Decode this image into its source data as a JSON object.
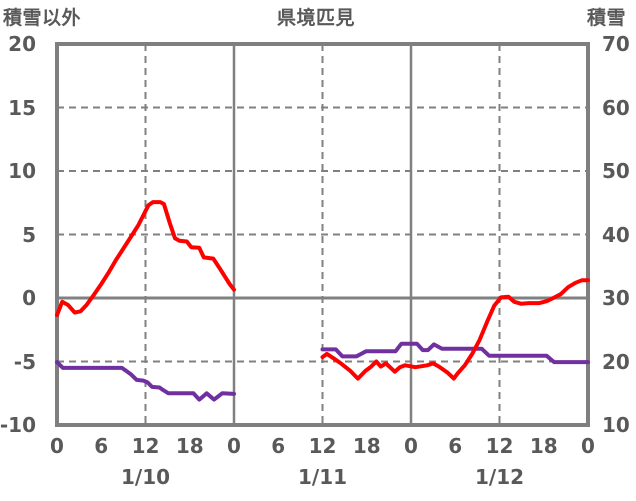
{
  "header": {
    "left_axis_title": "積雪以外",
    "title": "県境匹見",
    "right_axis_title": "積雪"
  },
  "colors": {
    "text": "#595959",
    "grid": "#808080",
    "border": "#7f7f7f",
    "background": "#ffffff",
    "red_series": "#ff0000",
    "purple_series": "#7030a0"
  },
  "chart_data": {
    "type": "line",
    "title": "県境匹見",
    "grid_on": true,
    "legend": "none",
    "left_axis": {
      "title": "積雪以外",
      "min": -10,
      "max": 20,
      "ticks": [
        {
          "label": "20",
          "value": 20
        },
        {
          "label": "15",
          "value": 15
        },
        {
          "label": "10",
          "value": 10
        },
        {
          "label": "5",
          "value": 5
        },
        {
          "label": "0",
          "value": 0
        },
        {
          "label": "-5",
          "value": -5
        },
        {
          "label": "-10",
          "value": -10
        }
      ]
    },
    "right_axis": {
      "title": "積雪",
      "min": 10,
      "max": 70,
      "ticks": [
        {
          "label": "70",
          "value": 70
        },
        {
          "label": "60",
          "value": 60
        },
        {
          "label": "50",
          "value": 50
        },
        {
          "label": "40",
          "value": 40
        },
        {
          "label": "30",
          "value": 30
        },
        {
          "label": "20",
          "value": 20
        },
        {
          "label": "10",
          "value": 10
        }
      ]
    },
    "x_axis": {
      "hours_total": 72,
      "hour_ticks": [
        {
          "label": "0",
          "hour": 0
        },
        {
          "label": "6",
          "hour": 6
        },
        {
          "label": "12",
          "hour": 12
        },
        {
          "label": "18",
          "hour": 18
        },
        {
          "label": "0",
          "hour": 24
        },
        {
          "label": "6",
          "hour": 30
        },
        {
          "label": "12",
          "hour": 36
        },
        {
          "label": "18",
          "hour": 42
        },
        {
          "label": "0",
          "hour": 48
        },
        {
          "label": "6",
          "hour": 54
        },
        {
          "label": "12",
          "hour": 60
        },
        {
          "label": "18",
          "hour": 66
        },
        {
          "label": "0",
          "hour": 72
        }
      ],
      "date_ticks": [
        {
          "label": "1/10",
          "hour": 12
        },
        {
          "label": "1/11",
          "hour": 36
        },
        {
          "label": "1/12",
          "hour": 60
        }
      ]
    },
    "grid": {
      "h_dashed_left_values": [
        15,
        10,
        5,
        -5
      ],
      "h_solid_left_values": [
        0
      ],
      "v_dashed_hours": [
        12,
        36,
        60
      ],
      "v_solid_hours": [
        24,
        48
      ]
    },
    "series": [
      {
        "name": "積雪以外 (red line, left axis)",
        "axis": "left",
        "color": "#ff0000",
        "segments": [
          [
            [
              0,
              -1.35
            ],
            [
              0.7,
              -0.3
            ],
            [
              1.5,
              -0.55
            ],
            [
              2.4,
              -1.15
            ],
            [
              3.2,
              -1.05
            ],
            [
              4,
              -0.55
            ],
            [
              5,
              0.25
            ],
            [
              6,
              1.1
            ],
            [
              7,
              2.0
            ],
            [
              8,
              3.0
            ],
            [
              9,
              3.9
            ],
            [
              10,
              4.8
            ],
            [
              11,
              5.7
            ],
            [
              11.7,
              6.5
            ],
            [
              12.4,
              7.3
            ],
            [
              13,
              7.55
            ],
            [
              14,
              7.55
            ],
            [
              14.5,
              7.4
            ],
            [
              15.3,
              5.9
            ],
            [
              16,
              4.7
            ],
            [
              16.6,
              4.5
            ],
            [
              17.6,
              4.45
            ],
            [
              18.2,
              4.0
            ],
            [
              19.3,
              3.95
            ],
            [
              19.9,
              3.2
            ],
            [
              21.2,
              3.1
            ],
            [
              22.1,
              2.3
            ],
            [
              23.4,
              1.1
            ],
            [
              24,
              0.65
            ]
          ],
          [
            [
              36,
              -4.65
            ],
            [
              36.6,
              -4.4
            ],
            [
              37.5,
              -4.75
            ],
            [
              38.5,
              -5.15
            ],
            [
              39.7,
              -5.7
            ],
            [
              40.8,
              -6.35
            ],
            [
              41.8,
              -5.75
            ],
            [
              42.6,
              -5.4
            ],
            [
              43.3,
              -5.0
            ],
            [
              43.9,
              -5.4
            ],
            [
              44.6,
              -5.15
            ],
            [
              45.8,
              -5.8
            ],
            [
              46.5,
              -5.45
            ],
            [
              47.2,
              -5.3
            ],
            [
              48.6,
              -5.45
            ],
            [
              50.2,
              -5.3
            ],
            [
              51,
              -5.15
            ],
            [
              51.8,
              -5.4
            ],
            [
              53,
              -5.9
            ],
            [
              53.8,
              -6.35
            ],
            [
              54.3,
              -5.95
            ],
            [
              55.3,
              -5.3
            ],
            [
              56.3,
              -4.4
            ],
            [
              57.3,
              -3.3
            ],
            [
              58.3,
              -1.9
            ],
            [
              59.3,
              -0.6
            ],
            [
              60.2,
              0.05
            ],
            [
              61.2,
              0.1
            ],
            [
              62,
              -0.3
            ],
            [
              62.9,
              -0.45
            ],
            [
              64,
              -0.4
            ],
            [
              65.4,
              -0.4
            ],
            [
              66.4,
              -0.25
            ],
            [
              67.3,
              0.0
            ],
            [
              68.3,
              0.3
            ],
            [
              69.3,
              0.85
            ],
            [
              70.3,
              1.2
            ],
            [
              71.2,
              1.4
            ],
            [
              72,
              1.4
            ]
          ]
        ]
      },
      {
        "name": "積雪 (purple line, right axis, cm)",
        "axis": "right",
        "color": "#7030a0",
        "segments": [
          [
            [
              0,
              19.9
            ],
            [
              0.8,
              19.0
            ],
            [
              8.8,
              19.0
            ],
            [
              10,
              18.0
            ],
            [
              10.8,
              17.1
            ],
            [
              11.7,
              17.0
            ],
            [
              12.3,
              16.7
            ],
            [
              12.9,
              16.0
            ],
            [
              13.9,
              15.9
            ],
            [
              14.4,
              15.5
            ],
            [
              15.1,
              15.0
            ],
            [
              18.5,
              15.0
            ],
            [
              19.3,
              14.0
            ],
            [
              20.3,
              15.0
            ],
            [
              21.3,
              14.0
            ],
            [
              22.4,
              15.0
            ],
            [
              24,
              14.9
            ]
          ],
          [
            [
              36,
              21.9
            ],
            [
              37.8,
              21.9
            ],
            [
              38.7,
              20.8
            ],
            [
              40.6,
              20.8
            ],
            [
              41.9,
              21.6
            ],
            [
              45.9,
              21.6
            ],
            [
              46.7,
              22.8
            ],
            [
              48.8,
              22.8
            ],
            [
              49.6,
              21.8
            ],
            [
              50.3,
              21.8
            ],
            [
              51.1,
              22.7
            ],
            [
              52.2,
              22.0
            ],
            [
              57.6,
              22.0
            ],
            [
              58.6,
              20.9
            ],
            [
              66.4,
              20.9
            ],
            [
              67.4,
              19.9
            ],
            [
              72,
              19.9
            ]
          ]
        ]
      }
    ]
  }
}
